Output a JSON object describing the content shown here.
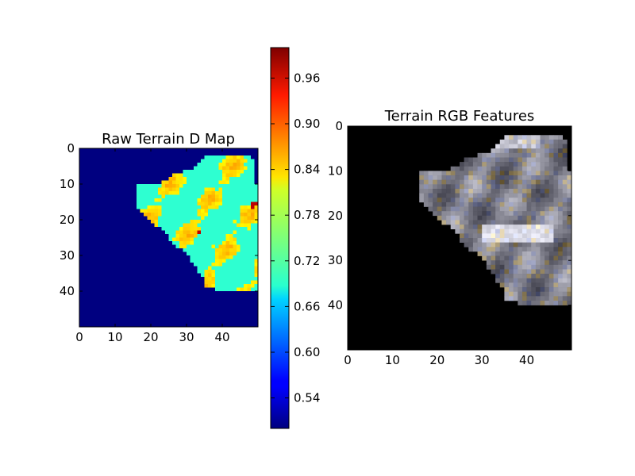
{
  "chart_data": [
    {
      "type": "heatmap",
      "title": "Raw Terrain D Map",
      "xlim": [
        0,
        50
      ],
      "ylim": [
        50,
        0
      ],
      "xticks": [
        "0",
        "10",
        "20",
        "30",
        "40"
      ],
      "yticks": [
        "0",
        "10",
        "20",
        "30",
        "40"
      ],
      "background_value": 0.5,
      "terrain_value_range": [
        0.68,
        0.86
      ],
      "terrain_dominant_value": 0.71,
      "outlier_value": 0.97,
      "grid": false
    },
    {
      "type": "colorbar",
      "colormap": "jet",
      "range": [
        0.5,
        1.0
      ],
      "ticks": [
        "0.54",
        "0.60",
        "0.66",
        "0.72",
        "0.78",
        "0.84",
        "0.90",
        "0.96"
      ],
      "tick_values": [
        0.54,
        0.6,
        0.66,
        0.72,
        0.78,
        0.84,
        0.9,
        0.96
      ]
    },
    {
      "type": "heatmap",
      "title": "Terrain RGB Features",
      "xlim": [
        0,
        50
      ],
      "ylim": [
        50,
        0
      ],
      "xticks": [
        "0",
        "10",
        "20",
        "30",
        "40"
      ],
      "yticks": [
        "0",
        "10",
        "20",
        "30",
        "40"
      ],
      "background_color": "#000000",
      "grid": false
    }
  ]
}
